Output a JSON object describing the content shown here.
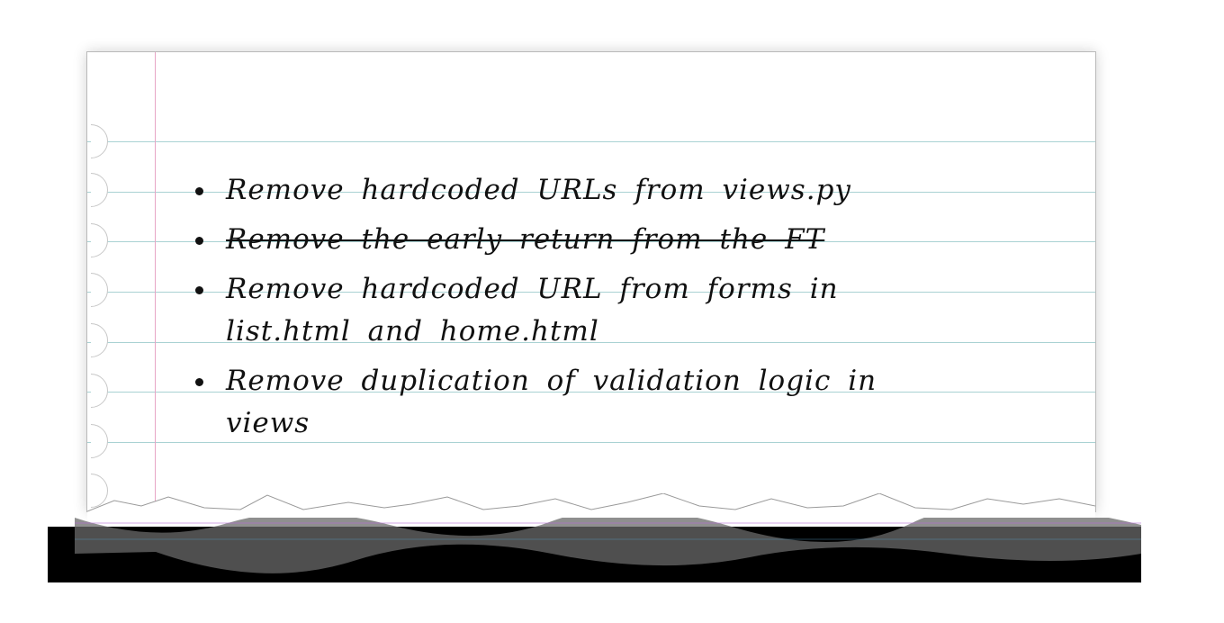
{
  "todo": {
    "items": [
      {
        "text": "Remove hardcoded URLs from views.py",
        "done": false
      },
      {
        "text": "Remove the early return from the FT",
        "done": true
      },
      {
        "text": "Remove hardcoded URL from forms in list.html and home.html",
        "done": false
      },
      {
        "text": "Remove duplication of validation logic in views",
        "done": false
      }
    ]
  },
  "colors": {
    "rule_line": "#a9d2d3",
    "margin_line": "#e7a6c6",
    "ink": "#111111"
  }
}
